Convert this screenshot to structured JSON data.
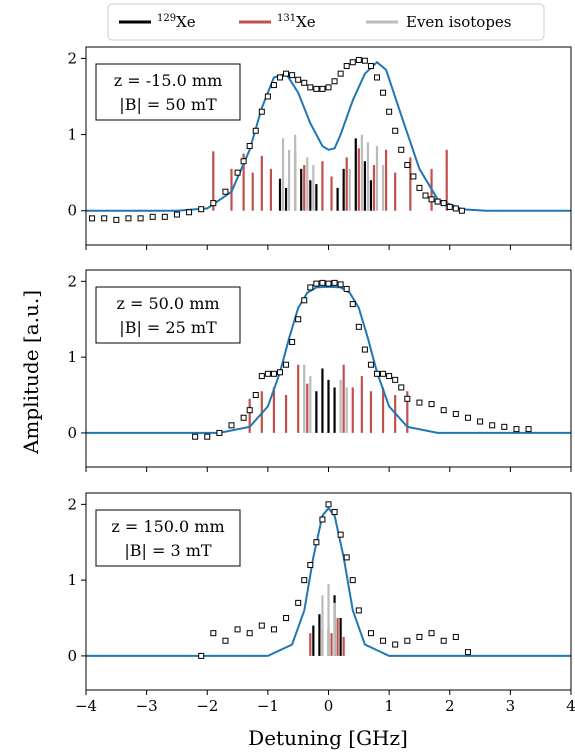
{
  "chart_data": {
    "type": "scatter",
    "shared": {
      "xlabel": "Detuning [GHz]",
      "ylabel": "Amplitude [a.u.]",
      "xlim": [
        -4,
        4
      ],
      "xticks": [
        -4,
        -3,
        -2,
        -1,
        0,
        1,
        2,
        3,
        4
      ],
      "xtick_labels": [
        "−4",
        "−3",
        "−2",
        "−1",
        "0",
        "1",
        "2",
        "3",
        "4"
      ],
      "ylim": [
        -0.45,
        2.15
      ],
      "yticks": [
        0,
        1,
        2
      ],
      "ytick_labels": [
        "0",
        "1",
        "2"
      ],
      "grid": false,
      "legend": {
        "placement": "top-center",
        "entries": [
          {
            "label_main": "Xe",
            "label_sup": "129",
            "color": "#000000"
          },
          {
            "label_main": "Xe",
            "label_sup": "131",
            "color": "#c0504d"
          },
          {
            "label_main": "Even isotopes",
            "label_sup": "",
            "color": "#bbbbbb"
          }
        ]
      },
      "colors": {
        "model": "#1f77b4",
        "data_marker": "#000000"
      }
    },
    "panels": [
      {
        "annotation": {
          "line1": "z = -15.0 mm",
          "line2": "|B| = 50 mT"
        },
        "data_x": [
          -3.9,
          -3.7,
          -3.5,
          -3.3,
          -3.1,
          -2.9,
          -2.7,
          -2.5,
          -2.3,
          -2.1,
          -1.9,
          -1.7,
          -1.5,
          -1.4,
          -1.3,
          -1.2,
          -1.1,
          -1.0,
          -0.9,
          -0.8,
          -0.7,
          -0.6,
          -0.5,
          -0.4,
          -0.3,
          -0.2,
          -0.1,
          0.0,
          0.1,
          0.2,
          0.3,
          0.4,
          0.5,
          0.6,
          0.7,
          0.8,
          0.9,
          1.0,
          1.1,
          1.2,
          1.3,
          1.4,
          1.5,
          1.6,
          1.7,
          1.8,
          1.9,
          2.0,
          2.1,
          2.2
        ],
        "data_y": [
          -0.1,
          -0.1,
          -0.12,
          -0.1,
          -0.1,
          -0.08,
          -0.08,
          -0.05,
          -0.02,
          0.02,
          0.1,
          0.25,
          0.5,
          0.65,
          0.85,
          1.05,
          1.3,
          1.5,
          1.65,
          1.75,
          1.8,
          1.78,
          1.72,
          1.68,
          1.62,
          1.6,
          1.6,
          1.62,
          1.7,
          1.8,
          1.9,
          1.95,
          1.98,
          1.97,
          1.9,
          1.75,
          1.55,
          1.3,
          1.05,
          0.8,
          0.6,
          0.45,
          0.3,
          0.2,
          0.15,
          0.12,
          0.1,
          0.05,
          0.03,
          0.0
        ],
        "model_x": [
          -4.0,
          -2.5,
          -2.0,
          -1.6,
          -1.3,
          -1.1,
          -0.9,
          -0.7,
          -0.5,
          -0.3,
          -0.1,
          0.0,
          0.1,
          0.2,
          0.4,
          0.6,
          0.8,
          0.95,
          1.2,
          1.5,
          1.8,
          2.2,
          2.6,
          4.0
        ],
        "model_y": [
          0.0,
          0.0,
          0.03,
          0.25,
          0.8,
          1.35,
          1.75,
          1.8,
          1.55,
          1.15,
          0.85,
          0.8,
          0.82,
          1.0,
          1.45,
          1.8,
          1.95,
          1.85,
          1.25,
          0.55,
          0.15,
          0.02,
          0.0,
          0.0
        ],
        "sticks": {
          "129": {
            "x": [
              -0.8,
              -0.7,
              -0.45,
              -0.3,
              -0.2,
              0.15,
              0.25,
              0.45,
              0.6,
              0.7
            ],
            "y": [
              0.42,
              0.3,
              0.55,
              0.4,
              0.35,
              0.3,
              0.55,
              0.95,
              0.65,
              0.4
            ]
          },
          "131": {
            "x": [
              -1.9,
              -1.6,
              -1.4,
              -1.25,
              -1.1,
              -0.95,
              -0.55,
              -0.4,
              -0.1,
              0.05,
              0.3,
              0.5,
              0.75,
              0.95,
              1.1,
              1.35,
              1.7,
              1.95
            ],
            "y": [
              0.78,
              0.55,
              0.75,
              0.5,
              0.72,
              0.55,
              0.78,
              0.6,
              0.65,
              0.45,
              0.7,
              0.82,
              0.6,
              0.8,
              0.5,
              0.7,
              0.55,
              0.8
            ]
          },
          "even": {
            "x": [
              -0.75,
              -0.65,
              -0.55,
              -0.35,
              -0.25,
              0.35,
              0.55,
              0.65,
              0.8,
              0.9
            ],
            "y": [
              0.95,
              0.8,
              1.0,
              0.7,
              0.6,
              0.55,
              1.0,
              0.9,
              0.85,
              0.6
            ]
          }
        }
      },
      {
        "annotation": {
          "line1": "z = 50.0 mm",
          "line2": "|B| = 25 mT"
        },
        "data_x": [
          -2.2,
          -2.0,
          -1.8,
          -1.6,
          -1.4,
          -1.3,
          -1.2,
          -1.1,
          -1.0,
          -0.9,
          -0.8,
          -0.7,
          -0.6,
          -0.5,
          -0.4,
          -0.3,
          -0.2,
          -0.1,
          0.0,
          0.1,
          0.2,
          0.3,
          0.4,
          0.5,
          0.6,
          0.7,
          0.8,
          0.9,
          1.0,
          1.1,
          1.2,
          1.3,
          1.5,
          1.7,
          1.9,
          2.1,
          2.3,
          2.5,
          2.7,
          2.9,
          3.1,
          3.3
        ],
        "data_y": [
          -0.05,
          -0.05,
          0.0,
          0.1,
          0.2,
          0.3,
          0.5,
          0.75,
          0.78,
          0.78,
          0.8,
          0.9,
          1.2,
          1.5,
          1.75,
          1.92,
          1.97,
          1.98,
          1.97,
          1.98,
          1.96,
          1.9,
          1.7,
          1.4,
          1.1,
          0.9,
          0.78,
          0.78,
          0.75,
          0.7,
          0.6,
          0.45,
          0.4,
          0.38,
          0.3,
          0.25,
          0.2,
          0.15,
          0.1,
          0.08,
          0.05,
          0.05
        ],
        "model_x": [
          -4.0,
          -1.8,
          -1.3,
          -1.0,
          -0.8,
          -0.65,
          -0.5,
          -0.35,
          -0.2,
          0.0,
          0.2,
          0.35,
          0.5,
          0.65,
          0.8,
          1.0,
          1.3,
          1.8,
          4.0
        ],
        "model_y": [
          0.0,
          0.0,
          0.08,
          0.35,
          0.8,
          1.25,
          1.65,
          1.85,
          1.92,
          1.93,
          1.92,
          1.85,
          1.65,
          1.25,
          0.8,
          0.35,
          0.08,
          0.0,
          0.0
        ],
        "sticks": {
          "129": {
            "x": [
              -0.2,
              -0.1,
              0.0,
              0.1
            ],
            "y": [
              0.55,
              0.85,
              0.7,
              0.6
            ]
          },
          "131": {
            "x": [
              -1.3,
              -1.1,
              -0.9,
              -0.7,
              -0.5,
              -0.35,
              0.25,
              0.4,
              0.55,
              0.7,
              0.9,
              1.1,
              1.3
            ],
            "y": [
              0.45,
              0.55,
              0.6,
              0.5,
              0.9,
              0.65,
              0.9,
              0.6,
              0.75,
              0.55,
              0.6,
              0.5,
              0.55
            ]
          },
          "even": {
            "x": [
              -0.4,
              -0.3,
              0.2,
              0.3
            ],
            "y": [
              0.9,
              0.75,
              0.7,
              0.6
            ]
          }
        }
      },
      {
        "annotation": {
          "line1": "z = 150.0 mm",
          "line2": "|B| = 3 mT"
        },
        "data_x": [
          -2.1,
          -1.9,
          -1.7,
          -1.5,
          -1.3,
          -1.1,
          -0.9,
          -0.7,
          -0.5,
          -0.4,
          -0.3,
          -0.2,
          -0.1,
          0.0,
          0.1,
          0.2,
          0.3,
          0.4,
          0.5,
          0.7,
          0.9,
          1.1,
          1.3,
          1.5,
          1.7,
          1.9,
          2.1,
          2.3
        ],
        "data_y": [
          0.0,
          0.3,
          0.2,
          0.35,
          0.3,
          0.4,
          0.35,
          0.5,
          0.7,
          1.0,
          1.2,
          1.5,
          1.8,
          2.0,
          1.9,
          1.6,
          1.3,
          1.0,
          0.6,
          0.3,
          0.2,
          0.15,
          0.2,
          0.25,
          0.3,
          0.2,
          0.25,
          0.05
        ],
        "model_x": [
          -4.0,
          -1.0,
          -0.6,
          -0.4,
          -0.25,
          -0.1,
          0.0,
          0.1,
          0.25,
          0.4,
          0.6,
          1.0,
          4.0
        ],
        "model_y": [
          0.0,
          0.0,
          0.15,
          0.6,
          1.3,
          1.85,
          1.95,
          1.85,
          1.3,
          0.6,
          0.15,
          0.0,
          0.0
        ],
        "sticks": {
          "129": {
            "x": [
              -0.25,
              -0.15,
              0.0,
              0.1,
              0.2
            ],
            "y": [
              0.4,
              0.55,
              0.35,
              0.8,
              0.5
            ]
          },
          "131": {
            "x": [
              -0.3,
              -0.1,
              0.05,
              0.15,
              0.25
            ],
            "y": [
              0.3,
              0.35,
              0.3,
              0.5,
              0.25
            ]
          },
          "even": {
            "x": [
              -0.1,
              0.0,
              0.1
            ],
            "y": [
              0.8,
              0.95,
              0.7
            ]
          }
        }
      }
    ]
  }
}
